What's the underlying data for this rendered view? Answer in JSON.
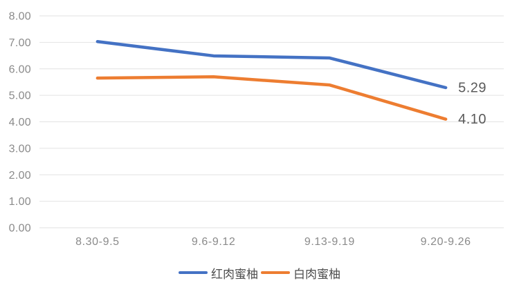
{
  "chart_data": {
    "type": "line",
    "title": "",
    "xlabel": "",
    "ylabel": "",
    "categories": [
      "8.30-9.5",
      "9.6-9.12",
      "9.13-9.19",
      "9.20-9.26"
    ],
    "series": [
      {
        "name": "红肉蜜柚",
        "color": "#4472C4",
        "values": [
          7.03,
          6.49,
          6.41,
          5.29
        ],
        "end_label": "5.29"
      },
      {
        "name": "白肉蜜柚",
        "color": "#ED7D31",
        "values": [
          5.65,
          5.7,
          5.39,
          4.1
        ],
        "end_label": "4.10"
      }
    ],
    "ylim": [
      0,
      8
    ],
    "ytick_step": 1,
    "ytick_labels": [
      "0.00",
      "1.00",
      "2.00",
      "3.00",
      "4.00",
      "5.00",
      "6.00",
      "7.00",
      "8.00"
    ],
    "grid": true,
    "legend_position": "bottom",
    "colors": {
      "background": "#FFFFFF",
      "gridline": "#E2E2E2",
      "tick_text": "#8A8A8A",
      "data_label": "#595959",
      "legend_text": "#4D4D4D"
    }
  }
}
